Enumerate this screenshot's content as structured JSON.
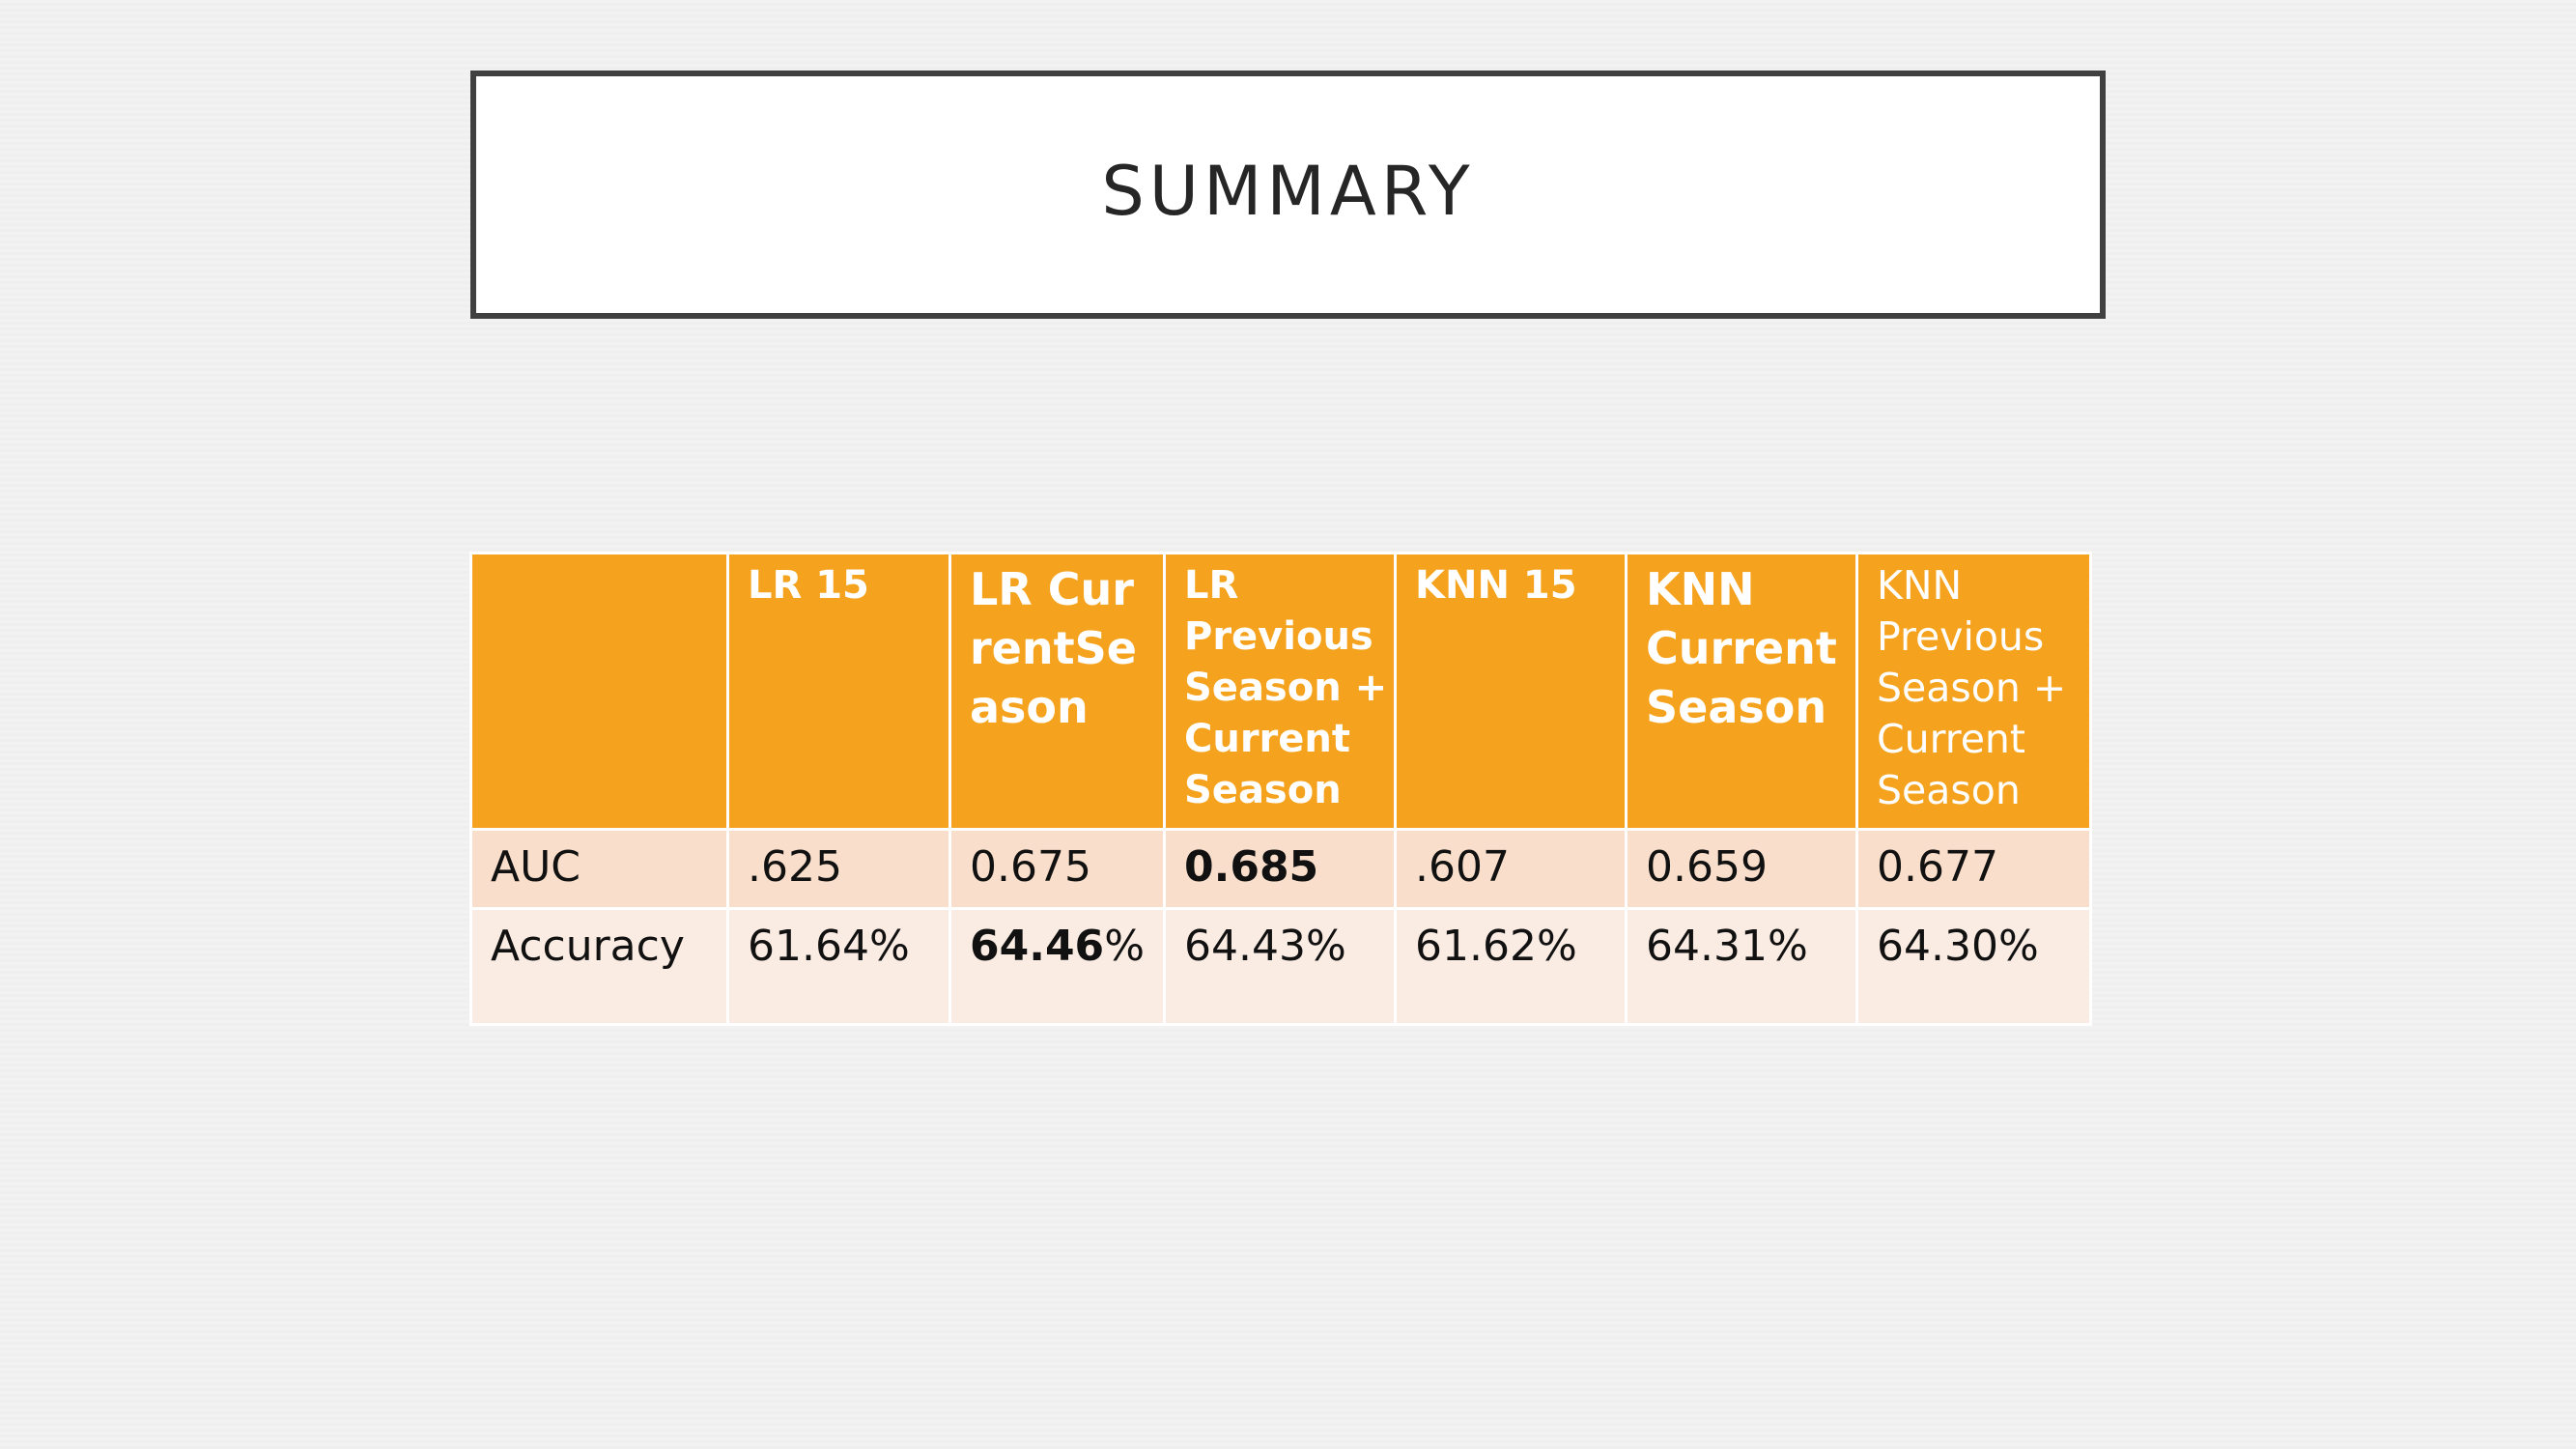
{
  "slide": {
    "title": "SUMMARY"
  },
  "table": {
    "headers": [
      "",
      "LR 15",
      "LR CurrentSeason",
      "LR Previous Season + Current Season",
      "KNN 15",
      "KNN Current Season",
      "KNN Previous Season + Current Season"
    ],
    "rows": [
      {
        "label": "AUC",
        "values": [
          ".625",
          "0.675",
          "0.685",
          ".607",
          "0.659",
          "0.677"
        ]
      },
      {
        "label": "Accuracy",
        "values": [
          "61.64%",
          "64.46",
          "64.43%",
          "61.62%",
          "64.31%",
          "64.30%"
        ],
        "value_suffix_2": "%"
      }
    ]
  },
  "colors": {
    "header_bg": "#f5a31e",
    "row1_bg": "#f9dfcb",
    "row2_bg": "#fbece3",
    "title_border": "#404040"
  }
}
